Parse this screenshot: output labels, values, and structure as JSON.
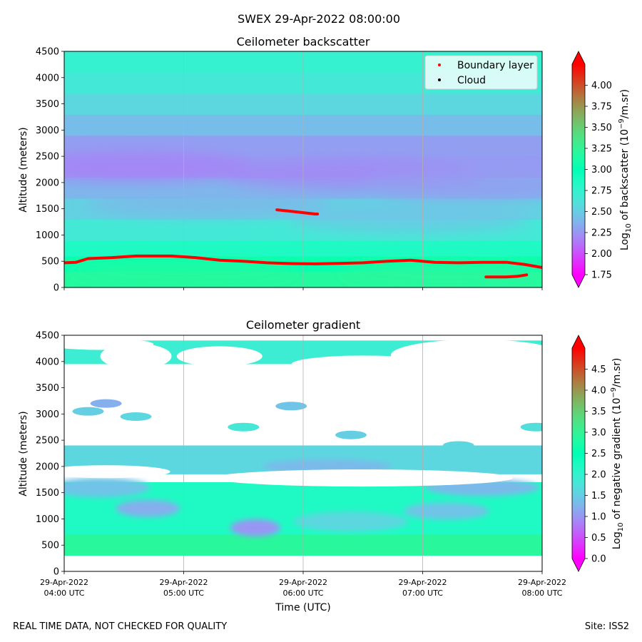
{
  "figure": {
    "suptitle": "SWEX 29-Apr-2022 08:00:00",
    "footer_left": "REAL TIME DATA, NOT CHECKED FOR QUALITY",
    "footer_right": "Site: ISS2",
    "xlabel": "Time (UTC)"
  },
  "colors": {
    "colormap": "rainbow",
    "boundary_layer": "#ff0000",
    "cloud": "#000000",
    "grid": "#b0b0b0"
  },
  "chart_data": [
    {
      "type": "heatmap",
      "title": "Ceilometer backscatter",
      "ylabel": "Altitude (meters)",
      "colorbar_label": "Log10 of backscatter (10^-9/m.sr)",
      "colorbar_range": [
        1.75,
        4.25
      ],
      "colorbar_ticks": [
        "1.75",
        "2.00",
        "2.25",
        "2.50",
        "2.75",
        "3.00",
        "3.25",
        "3.50",
        "3.75",
        "4.00"
      ],
      "colorbar_tick_values": [
        1.75,
        2.0,
        2.25,
        2.5,
        2.75,
        3.0,
        3.25,
        3.5,
        3.75,
        4.0
      ],
      "x_range_hours": [
        4,
        8
      ],
      "ylim": [
        0,
        4500
      ],
      "yticks": [
        0,
        500,
        1000,
        1500,
        2000,
        2500,
        3000,
        3500,
        4000,
        4500
      ],
      "legend": {
        "placement": "top-right",
        "entries": [
          "Boundary layer",
          "Cloud"
        ]
      },
      "profile": [
        {
          "alt": 0,
          "v": 3.2
        },
        {
          "alt": 300,
          "v": 3.15
        },
        {
          "alt": 600,
          "v": 2.95
        },
        {
          "alt": 900,
          "v": 2.75
        },
        {
          "alt": 1300,
          "v": 2.58
        },
        {
          "alt": 1700,
          "v": 2.45
        },
        {
          "alt": 2100,
          "v": 2.32
        },
        {
          "alt": 2500,
          "v": 2.22
        },
        {
          "alt": 2900,
          "v": 2.35
        },
        {
          "alt": 3300,
          "v": 2.48
        },
        {
          "alt": 3700,
          "v": 2.62
        },
        {
          "alt": 4100,
          "v": 2.72
        },
        {
          "alt": 4500,
          "v": 2.75
        }
      ],
      "boundary_layer_series": [
        {
          "name": "main",
          "points": [
            [
              4.0,
              470
            ],
            [
              4.1,
              480
            ],
            [
              4.2,
              550
            ],
            [
              4.4,
              570
            ],
            [
              4.6,
              600
            ],
            [
              4.9,
              600
            ],
            [
              5.1,
              570
            ],
            [
              5.3,
              520
            ],
            [
              5.5,
              500
            ],
            [
              5.7,
              470
            ],
            [
              5.9,
              455
            ],
            [
              6.1,
              450
            ],
            [
              6.3,
              460
            ],
            [
              6.5,
              470
            ],
            [
              6.7,
              500
            ],
            [
              6.9,
              520
            ],
            [
              7.1,
              480
            ],
            [
              7.3,
              470
            ],
            [
              7.5,
              480
            ],
            [
              7.7,
              480
            ],
            [
              7.85,
              440
            ],
            [
              8.0,
              380
            ]
          ]
        },
        {
          "name": "elevated",
          "points": [
            [
              5.78,
              1480
            ],
            [
              5.9,
              1450
            ],
            [
              6.1,
              1400
            ],
            [
              6.12,
              1400
            ]
          ]
        },
        {
          "name": "low",
          "points": [
            [
              7.53,
              200
            ],
            [
              7.7,
              200
            ],
            [
              7.8,
              215
            ],
            [
              7.87,
              240
            ]
          ]
        }
      ]
    },
    {
      "type": "heatmap",
      "title": "Ceilometer gradient",
      "ylabel": "Altitude (meters)",
      "colorbar_label": "Log10 of negative gradient (10^-9/m.sr)",
      "colorbar_range": [
        0.0,
        5.0
      ],
      "colorbar_ticks": [
        "0.0",
        "0.5",
        "1.0",
        "1.5",
        "2.0",
        "2.5",
        "3.0",
        "3.5",
        "4.0",
        "4.5"
      ],
      "colorbar_tick_values": [
        0,
        0.5,
        1.0,
        1.5,
        2.0,
        2.5,
        3.0,
        3.5,
        4.0,
        4.5
      ],
      "x_range_hours": [
        4,
        8
      ],
      "ylim": [
        0,
        4500
      ],
      "yticks": [
        0,
        500,
        1000,
        1500,
        2000,
        2500,
        3000,
        3500,
        4000,
        4500
      ],
      "xticks": [
        {
          "hour": 4,
          "line1": "29-Apr-2022",
          "line2": "04:00 UTC"
        },
        {
          "hour": 5,
          "line1": "29-Apr-2022",
          "line2": "05:00 UTC"
        },
        {
          "hour": 6,
          "line1": "29-Apr-2022",
          "line2": "06:00 UTC"
        },
        {
          "hour": 7,
          "line1": "29-Apr-2022",
          "line2": "07:00 UTC"
        },
        {
          "hour": 8,
          "line1": "29-Apr-2022",
          "line2": "08:00 UTC"
        }
      ],
      "bands": [
        {
          "name": "surface",
          "t0": 4.0,
          "t1": 8.0,
          "alt_bottom": 300,
          "alt_top": 1700,
          "v": 2.2
        },
        {
          "name": "warm-base",
          "t0": 4.0,
          "t1": 8.0,
          "alt_bottom": 300,
          "alt_top": 700,
          "v": 2.9
        },
        {
          "name": "layer-2000",
          "t0": 4.0,
          "t1": 8.0,
          "alt_bottom": 1850,
          "alt_top": 2400,
          "v": 1.6
        },
        {
          "name": "clouds-4200",
          "t0": 4.0,
          "t1": 8.0,
          "alt_bottom": 3950,
          "alt_top": 4400,
          "v": 1.9
        }
      ],
      "patches": [
        {
          "t": 4.2,
          "alt": 3050,
          "v": 1.5
        },
        {
          "t": 4.6,
          "alt": 2950,
          "v": 1.6
        },
        {
          "t": 5.5,
          "alt": 2750,
          "v": 1.8
        },
        {
          "t": 5.9,
          "alt": 3150,
          "v": 1.4
        },
        {
          "t": 6.4,
          "alt": 2600,
          "v": 1.5
        },
        {
          "t": 7.3,
          "alt": 2400,
          "v": 1.6
        },
        {
          "t": 7.95,
          "alt": 2750,
          "v": 1.7
        },
        {
          "t": 4.35,
          "alt": 3200,
          "v": 1.2
        }
      ]
    }
  ]
}
